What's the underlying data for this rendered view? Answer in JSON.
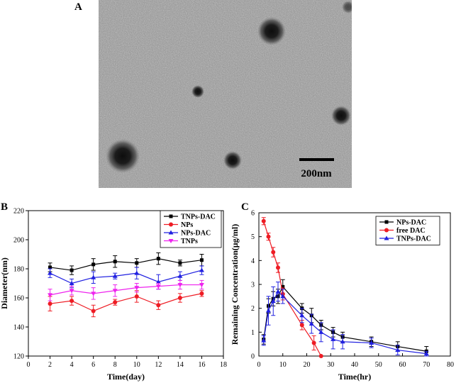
{
  "panel_labels": {
    "a": "A",
    "b": "B",
    "c": "C"
  },
  "micrograph": {
    "scale_bar_label": "200nm"
  },
  "chart_data": [
    {
      "panel": "B",
      "type": "line",
      "title": "",
      "xlabel": "Time(day)",
      "ylabel": "Diameter(nm)",
      "xlim": [
        0,
        18
      ],
      "ylim": [
        120,
        220
      ],
      "xticks": [
        0,
        2,
        4,
        6,
        8,
        10,
        12,
        14,
        16,
        18
      ],
      "yticks": [
        120,
        140,
        160,
        180,
        200,
        220
      ],
      "x": [
        2,
        4,
        6,
        8,
        10,
        12,
        14,
        16
      ],
      "legend_position": "top-right",
      "series": [
        {
          "name": "TNPs-DAC",
          "color": "#000000",
          "marker": "square",
          "values": [
            181,
            179,
            183,
            185,
            184,
            187,
            184,
            186
          ],
          "err": [
            3,
            3,
            4,
            4,
            3,
            4,
            2,
            4
          ]
        },
        {
          "name": "NPs",
          "color": "#ee1c24",
          "marker": "circle",
          "values": [
            156,
            158,
            151,
            157,
            161,
            155,
            160,
            163
          ],
          "err": [
            5,
            3,
            4,
            2,
            4,
            3,
            3,
            2
          ]
        },
        {
          "name": "NPs-DAC",
          "color": "#2020e0",
          "marker": "triangle-up",
          "values": [
            177,
            170,
            174,
            175,
            177,
            171,
            175,
            179
          ],
          "err": [
            3,
            3,
            4,
            2,
            4,
            5,
            3,
            3
          ]
        },
        {
          "name": "TNPs",
          "color": "#ee22ee",
          "marker": "triangle-down",
          "values": [
            162,
            165,
            163,
            165,
            167,
            168,
            169,
            169
          ],
          "err": [
            4,
            3,
            4,
            4,
            3,
            2,
            3,
            3
          ]
        }
      ]
    },
    {
      "panel": "C",
      "type": "line",
      "title": "",
      "xlabel": "Time(hr)",
      "ylabel": "Remaining Concentration(μg/ml)",
      "xlim": [
        0,
        80
      ],
      "ylim": [
        0,
        6
      ],
      "xticks": [
        0,
        10,
        20,
        30,
        40,
        50,
        60,
        70,
        80
      ],
      "yticks": [
        0,
        1,
        2,
        3,
        4,
        5,
        6
      ],
      "legend_position": "top-right",
      "series": [
        {
          "name": "NPs-DAC",
          "color": "#000000",
          "marker": "square",
          "x": [
            2,
            4,
            6,
            8,
            10,
            18,
            22,
            26,
            31,
            35,
            47,
            58,
            70
          ],
          "values": [
            0.7,
            2.1,
            2.4,
            2.5,
            2.9,
            2.0,
            1.7,
            1.3,
            1.0,
            0.8,
            0.6,
            0.4,
            0.2
          ],
          "err": [
            0.2,
            0.3,
            0.3,
            0.3,
            0.3,
            0.2,
            0.3,
            0.2,
            0.2,
            0.2,
            0.2,
            0.2,
            0.2
          ]
        },
        {
          "name": "free DAC",
          "color": "#ee1c24",
          "marker": "circle",
          "x": [
            2,
            4,
            6,
            8,
            10,
            18,
            23,
            26
          ],
          "values": [
            5.65,
            5.0,
            4.35,
            3.7,
            2.6,
            1.3,
            0.55,
            0.0
          ],
          "err": [
            0.15,
            0.15,
            0.2,
            0.2,
            0.25,
            0.2,
            0.3,
            0.0
          ]
        },
        {
          "name": "TNPs-DAC",
          "color": "#2020e0",
          "marker": "triangle-up",
          "x": [
            2,
            4,
            6,
            8,
            10,
            18,
            22,
            26,
            31,
            35,
            47,
            58,
            70
          ],
          "values": [
            0.65,
            1.9,
            2.3,
            2.7,
            2.5,
            1.7,
            1.35,
            1.0,
            0.7,
            0.6,
            0.55,
            0.25,
            0.1
          ],
          "err": [
            0.2,
            0.6,
            0.6,
            0.4,
            0.3,
            0.3,
            0.4,
            0.4,
            0.4,
            0.3,
            0.2,
            0.2,
            0.1
          ]
        }
      ]
    }
  ]
}
